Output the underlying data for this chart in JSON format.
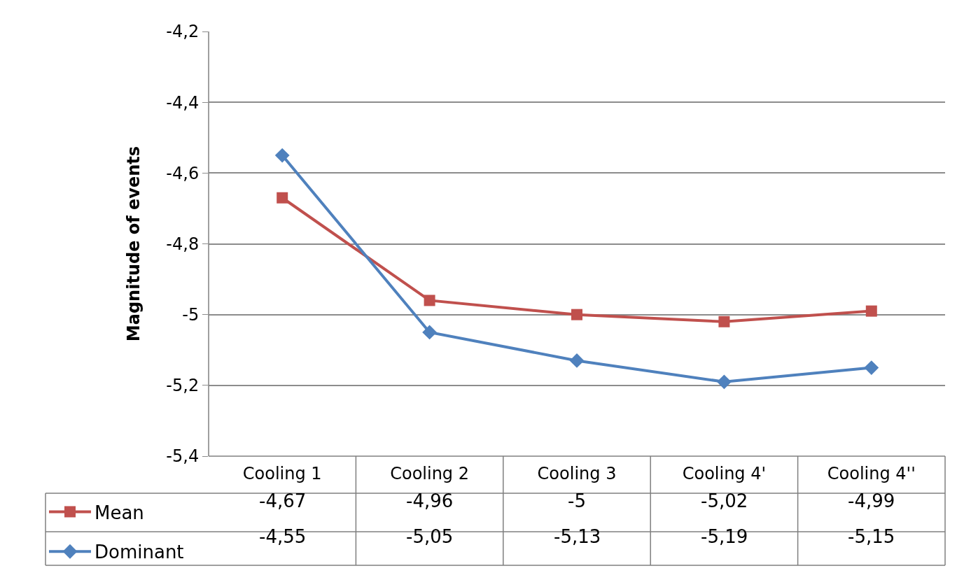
{
  "chart_data": {
    "type": "line",
    "ylabel": "Magnitude of events",
    "categories": [
      "Cooling 1",
      "Cooling 2",
      "Cooling 3",
      "Cooling 4'",
      "Cooling 4''"
    ],
    "series": [
      {
        "name": "Mean",
        "color": "#c0504d",
        "marker": "square",
        "values": [
          -4.67,
          -4.96,
          -5,
          -5.02,
          -4.99
        ],
        "value_labels": [
          "-4,67",
          "-4,96",
          "-5",
          "-5,02",
          "-4,99"
        ]
      },
      {
        "name": "Dominant",
        "color": "#4f81bd",
        "marker": "diamond",
        "values": [
          -4.55,
          -5.05,
          -5.13,
          -5.19,
          -5.15
        ],
        "value_labels": [
          "-4,55",
          "-5,05",
          "-5,13",
          "-5,19",
          "-5,15"
        ]
      }
    ],
    "ylim": [
      -5.4,
      -4.2
    ],
    "yticks": [
      {
        "value": -5.4,
        "label": "-5,4"
      },
      {
        "value": -5.2,
        "label": "-5,2"
      },
      {
        "value": -5,
        "label": "-5"
      },
      {
        "value": -4.8,
        "label": "-4,8"
      },
      {
        "value": -4.6,
        "label": "-4,6"
      },
      {
        "value": -4.4,
        "label": "-4,4"
      },
      {
        "value": -4.2,
        "label": "-4,2"
      }
    ],
    "grid": "y",
    "legend": "bottom left",
    "line_style": "solid"
  }
}
